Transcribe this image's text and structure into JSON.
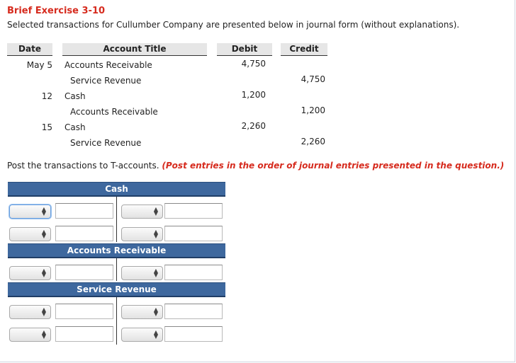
{
  "exercise_title": "Brief Exercise 3-10",
  "intro": "Selected transactions for Cullumber Company are presented below in journal form (without explanations).",
  "journal": {
    "headers": {
      "date": "Date",
      "account": "Account Title",
      "debit": "Debit",
      "credit": "Credit"
    },
    "rows": [
      {
        "date": "May 5",
        "account": "Accounts Receivable",
        "debit": "4,750",
        "credit": ""
      },
      {
        "date": "",
        "account": "Service Revenue",
        "debit": "",
        "credit": "4,750"
      },
      {
        "date": "12",
        "account": "Cash",
        "debit": "1,200",
        "credit": ""
      },
      {
        "date": "",
        "account": "Accounts Receivable",
        "debit": "",
        "credit": "1,200"
      },
      {
        "date": "15",
        "account": "Cash",
        "debit": "2,260",
        "credit": ""
      },
      {
        "date": "",
        "account": "Service Revenue",
        "debit": "",
        "credit": "2,260"
      }
    ]
  },
  "instruction": "Post the transactions to T-accounts.",
  "instruction_hint": "(Post entries in the order of journal entries presented in the question.)",
  "t_accounts": [
    {
      "title": "Cash",
      "rows": 2
    },
    {
      "title": "Accounts Receivable",
      "rows": 1
    },
    {
      "title": "Service Revenue",
      "rows": 2
    }
  ],
  "icons": {
    "select_arrow": "up-down-chevron-icon"
  }
}
